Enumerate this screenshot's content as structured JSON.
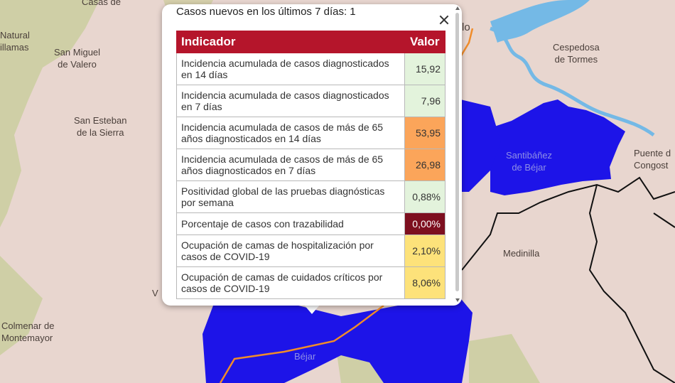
{
  "map": {
    "places": [
      {
        "id": "natural",
        "lines": [
          "Natural",
          "illamas"
        ]
      },
      {
        "id": "casas",
        "lines": [
          "Casas de"
        ]
      },
      {
        "id": "san-miguel",
        "lines": [
          "San Miguel",
          "de Valero"
        ]
      },
      {
        "id": "san-esteban",
        "lines": [
          "San Esteban",
          "de la Sierra"
        ]
      },
      {
        "id": "colmenar",
        "lines": [
          "Colmenar de",
          "Montemayor"
        ]
      },
      {
        "id": "lo",
        "lines": [
          "lo"
        ]
      },
      {
        "id": "cespedosa",
        "lines": [
          "Cespedosa",
          "de Tormes"
        ]
      },
      {
        "id": "santibanez",
        "lines": [
          "Santibáñez",
          "de Béjar"
        ]
      },
      {
        "id": "puente",
        "lines": [
          "Puente d",
          "Congost"
        ]
      },
      {
        "id": "medinilla",
        "lines": [
          "Medinilla"
        ]
      },
      {
        "id": "bejar",
        "lines": [
          "Béjar"
        ]
      },
      {
        "id": "v",
        "lines": [
          "V"
        ]
      }
    ],
    "colors": {
      "land": "#e8d6cf",
      "forest": "#cfcfa6",
      "region": "#1d14e8",
      "water": "#74b9e6",
      "road": "#f08c2a",
      "border": "#111111"
    }
  },
  "popup": {
    "header": "Casos nuevos en los últimos 7 días: 1",
    "close_icon": "close-icon",
    "table": {
      "columns": [
        "Indicador",
        "Valor"
      ],
      "header_color": "#b5152b",
      "rows": [
        {
          "indicator": "Incidencia acumulada de casos diagnosticados en 14 días",
          "value": "15,92",
          "color": "#e3f3dc",
          "text_color": "#333333"
        },
        {
          "indicator": "Incidencia acumulada de casos diagnosticados en 7 días",
          "value": "7,96",
          "color": "#e3f3dc",
          "text_color": "#333333"
        },
        {
          "indicator": "Incidencia acumulada de casos de más de 65 años diagnosticados en 14 días",
          "value": "53,95",
          "color": "#fba55a",
          "text_color": "#333333"
        },
        {
          "indicator": "Incidencia acumulada de casos de más de 65 años diagnosticados en 7 días",
          "value": "26,98",
          "color": "#fba55a",
          "text_color": "#333333"
        },
        {
          "indicator": "Positividad global de las pruebas diagnósticas por semana",
          "value": "0,88%",
          "color": "#e3f3dc",
          "text_color": "#333333"
        },
        {
          "indicator": "Porcentaje de casos con trazabilidad",
          "value": "0,00%",
          "color": "#7d0f1f",
          "text_color": "#ffffff"
        },
        {
          "indicator": "Ocupación de camas de hospitalización por casos de COVID-19",
          "value": "2,10%",
          "color": "#fde27a",
          "text_color": "#333333"
        },
        {
          "indicator": "Ocupación de camas de cuidados críticos por casos de COVID-19",
          "value": "8,06%",
          "color": "#fde27a",
          "text_color": "#333333"
        }
      ]
    }
  }
}
